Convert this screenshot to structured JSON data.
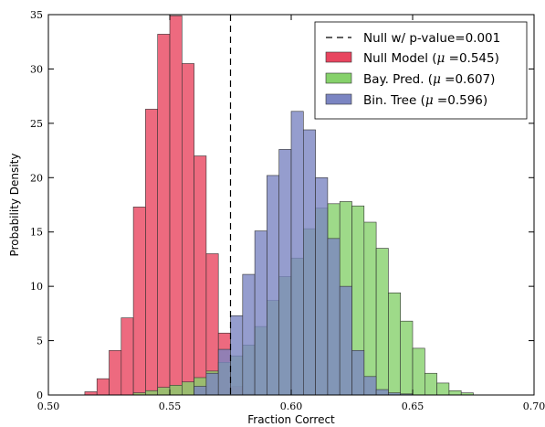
{
  "chart_data": {
    "type": "bar",
    "xlabel": "Fraction Correct",
    "ylabel": "Probability Density",
    "xlim": [
      0.5,
      0.7
    ],
    "ylim": [
      0,
      35
    ],
    "xticks": [
      "0.50",
      "0.55",
      "0.60",
      "0.65",
      "0.70"
    ],
    "yticks": [
      "0",
      "5",
      "10",
      "15",
      "20",
      "25",
      "30",
      "35"
    ],
    "xtick_values": [
      0.5,
      0.55,
      0.6,
      0.65,
      0.7
    ],
    "ytick_values": [
      0,
      5,
      10,
      15,
      20,
      25,
      30,
      35
    ],
    "grid": false,
    "legend_position": "top-right",
    "bin_width": 0.005,
    "null_line": {
      "label": "Null w/ p-value=0.001",
      "x": 0.575,
      "style": "dashed"
    },
    "series": [
      {
        "name": "Null Model",
        "mu_text": "0.545",
        "color": "#e8455f",
        "bins_start": [
          0.515,
          0.52,
          0.525,
          0.53,
          0.535,
          0.54,
          0.545,
          0.55,
          0.555,
          0.56,
          0.565,
          0.57,
          0.575,
          0.58
        ],
        "values": [
          0.3,
          1.5,
          4.1,
          7.1,
          17.3,
          26.3,
          33.2,
          34.9,
          30.5,
          22.0,
          13.0,
          5.7,
          0.8,
          0.1
        ]
      },
      {
        "name": "Bay. Pred.",
        "mu_text": "0.607",
        "color": "#86d16b",
        "bins_start": [
          0.535,
          0.54,
          0.545,
          0.55,
          0.555,
          0.56,
          0.565,
          0.57,
          0.575,
          0.58,
          0.585,
          0.59,
          0.595,
          0.6,
          0.605,
          0.61,
          0.615,
          0.62,
          0.625,
          0.63,
          0.635,
          0.64,
          0.645,
          0.65,
          0.655,
          0.66,
          0.665,
          0.67
        ],
        "values": [
          0.2,
          0.4,
          0.7,
          0.9,
          1.2,
          1.6,
          2.2,
          3.0,
          3.6,
          4.6,
          6.3,
          8.7,
          10.9,
          12.6,
          15.3,
          17.2,
          17.6,
          17.8,
          17.4,
          15.9,
          13.5,
          9.4,
          6.8,
          4.3,
          2.0,
          1.1,
          0.4,
          0.2
        ]
      },
      {
        "name": "Bin. Tree",
        "mu_text": "0.596",
        "color": "#7b85c2",
        "bins_start": [
          0.56,
          0.565,
          0.57,
          0.575,
          0.58,
          0.585,
          0.59,
          0.595,
          0.6,
          0.605,
          0.61,
          0.615,
          0.62,
          0.625,
          0.63,
          0.635,
          0.64,
          0.645
        ],
        "values": [
          0.8,
          2.0,
          4.2,
          7.3,
          11.1,
          15.1,
          20.2,
          22.6,
          26.1,
          24.4,
          20.0,
          14.4,
          10.0,
          4.1,
          1.7,
          0.5,
          0.2,
          0.1
        ]
      }
    ]
  }
}
